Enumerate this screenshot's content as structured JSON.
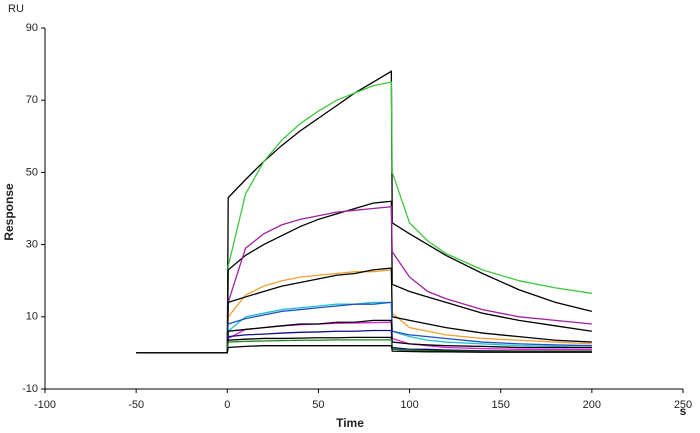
{
  "chart_data": {
    "type": "line",
    "y_unit": "RU",
    "x_unit": "s",
    "xlabel": "Time",
    "ylabel": "Response",
    "xlim": [
      -100,
      250
    ],
    "xticks": [
      -100,
      -50,
      0,
      50,
      100,
      150,
      200,
      250
    ],
    "ylim": [
      -10,
      90
    ],
    "yticks": [
      -10,
      10,
      30,
      50,
      70,
      90
    ],
    "grid": false,
    "x": [
      -50,
      0,
      0.5,
      10,
      20,
      30,
      40,
      50,
      60,
      70,
      80,
      90,
      90.5,
      100,
      110,
      120,
      140,
      160,
      180,
      200
    ],
    "series": [
      {
        "color": "#000000",
        "values": [
          0,
          0,
          43,
          48,
          53,
          57.5,
          61.5,
          65,
          68.5,
          72,
          75,
          78,
          36,
          33,
          30,
          27,
          22,
          17.5,
          14,
          11.5
        ]
      },
      {
        "color": "#3cc83c",
        "values": [
          0,
          0,
          24,
          44,
          53,
          59,
          63.5,
          67,
          70,
          72,
          74,
          75,
          50,
          36,
          31,
          27.5,
          23,
          20,
          18,
          16.5
        ]
      },
      {
        "color": "#000000",
        "values": [
          0,
          0,
          23,
          27,
          30,
          32.5,
          35,
          37,
          38.5,
          40,
          41.5,
          42,
          19,
          17,
          15.5,
          14,
          11,
          9,
          7.5,
          6
        ]
      },
      {
        "color": "#a020a0",
        "values": [
          0,
          0,
          14,
          29,
          33,
          35.5,
          37,
          38,
          39,
          39.5,
          40,
          40.5,
          28,
          21,
          17,
          15,
          12,
          10,
          9,
          8
        ]
      },
      {
        "color": "#f0a030",
        "values": [
          0,
          0,
          10,
          16,
          18.5,
          20,
          21,
          21.5,
          22,
          22.5,
          22.5,
          23,
          11,
          7,
          6,
          5,
          4,
          3.5,
          3,
          2.5
        ]
      },
      {
        "color": "#000000",
        "values": [
          0,
          0,
          14,
          15.5,
          17,
          18.5,
          19.5,
          20.5,
          21.5,
          22,
          23,
          23.5,
          10,
          9,
          8,
          7,
          5.5,
          4.5,
          3.5,
          3
        ]
      },
      {
        "color": "#20c0d0",
        "values": [
          0,
          0,
          6,
          10,
          11,
          12,
          12.5,
          13,
          13.5,
          13.5,
          14,
          14,
          6,
          4.5,
          3.5,
          3,
          2.5,
          2,
          1.8,
          1.5
        ]
      },
      {
        "color": "#2050c0",
        "values": [
          0,
          0,
          8,
          9.5,
          10.5,
          11.5,
          12,
          12.5,
          13,
          13.5,
          13.5,
          14,
          6,
          5,
          4.5,
          4,
          3,
          2.5,
          2.2,
          2
        ]
      },
      {
        "color": "#e020e0",
        "values": [
          0,
          0,
          4,
          6.5,
          7,
          7.5,
          7.8,
          8,
          8.2,
          8.3,
          8.4,
          8.5,
          4,
          2.5,
          2,
          1.5,
          1.2,
          1,
          1,
          1
        ]
      },
      {
        "color": "#000000",
        "values": [
          0,
          0,
          6,
          6.5,
          7,
          7.5,
          8,
          8,
          8.5,
          8.5,
          9,
          9,
          3,
          2.5,
          2.2,
          2,
          1.8,
          1.5,
          1.5,
          1.5
        ]
      },
      {
        "color": "#101080",
        "values": [
          0,
          0,
          4.5,
          5,
          5.2,
          5.5,
          5.7,
          5.8,
          6,
          6,
          6.2,
          6.2,
          1.5,
          1,
          1,
          0.8,
          0.6,
          0.5,
          0.5,
          0.5
        ]
      },
      {
        "color": "#000000",
        "values": [
          0,
          0,
          3.5,
          3.8,
          4,
          4,
          4.1,
          4.2,
          4.2,
          4.3,
          4.3,
          4.3,
          1,
          0.8,
          0.7,
          0.6,
          0.5,
          0.5,
          0.5,
          0.5
        ]
      },
      {
        "color": "#208020",
        "values": [
          0,
          0,
          3,
          3.2,
          3.3,
          3.4,
          3.5,
          3.5,
          3.6,
          3.6,
          3.6,
          3.6,
          1,
          0.8,
          0.6,
          0.5,
          0.4,
          0.3,
          0.3,
          0.3
        ]
      },
      {
        "color": "#000000",
        "values": [
          0,
          0,
          1.5,
          1.8,
          2,
          2,
          2,
          2,
          2,
          2,
          2,
          2,
          0.5,
          0.4,
          0.3,
          0.3,
          0.2,
          0.2,
          0.2,
          0.2
        ]
      }
    ]
  }
}
